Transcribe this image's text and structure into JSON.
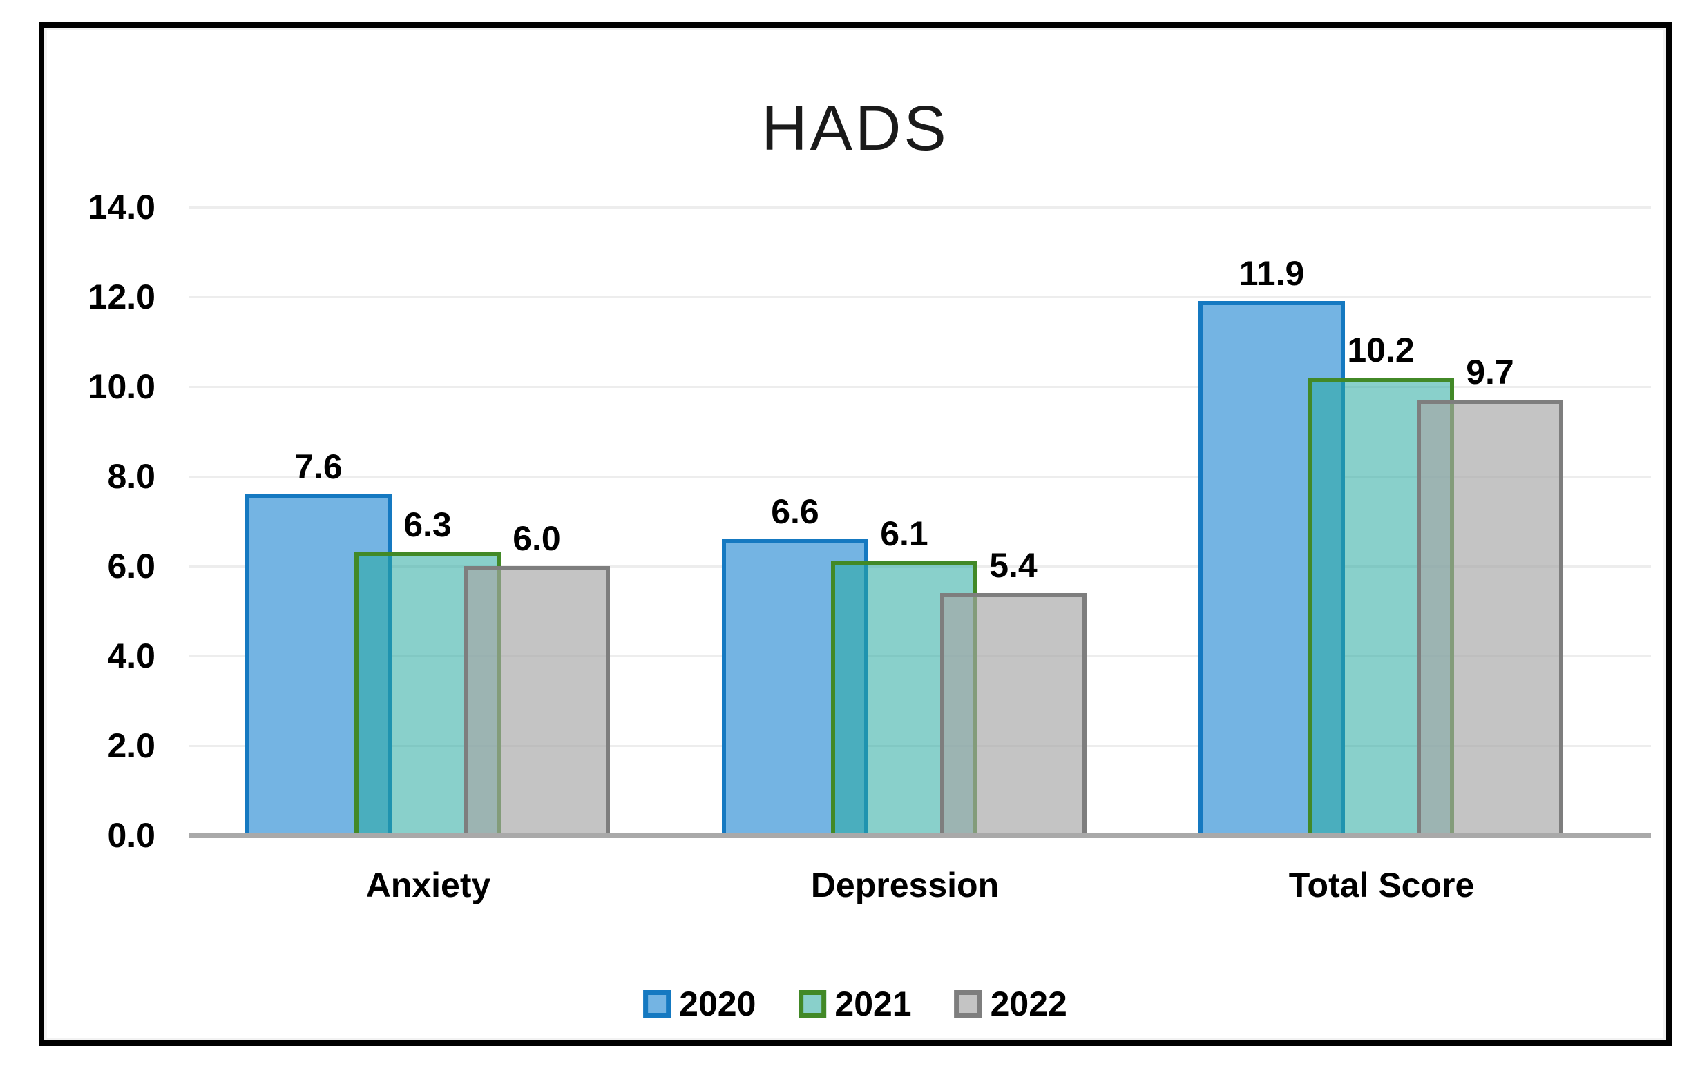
{
  "chart_data": {
    "type": "bar",
    "title": "HADS",
    "categories": [
      "Anxiety",
      "Depression",
      "Total Score"
    ],
    "series": [
      {
        "name": "2020",
        "values": [
          7.6,
          6.6,
          11.9
        ],
        "labels": [
          "7.6",
          "6.6",
          "11.9"
        ],
        "fill": "#74B4E3",
        "border": "#1579C1"
      },
      {
        "name": "2021",
        "values": [
          6.3,
          6.1,
          10.2
        ],
        "labels": [
          "6.3",
          "6.1",
          "10.2"
        ],
        "fill": "rgba(40,170,160,0.55)",
        "border": "#428927"
      },
      {
        "name": "2022",
        "values": [
          6.0,
          5.4,
          9.7
        ],
        "labels": [
          "6.0",
          "5.4",
          "9.7"
        ],
        "fill": "rgba(166,166,166,0.66)",
        "border": "#7E7E7E"
      }
    ],
    "ylim": [
      0,
      14
    ],
    "ytick_step": 2,
    "ytick_labels": [
      "0.0",
      "2.0",
      "4.0",
      "6.0",
      "8.0",
      "10.0",
      "12.0",
      "14.0"
    ],
    "grid": true,
    "gridline_color": "#EDEDED",
    "axis_color": "#A9A9A9",
    "legend": {
      "position": "bottom",
      "items": [
        "2020",
        "2021",
        "2022"
      ]
    },
    "figure_border_color": "#000000"
  }
}
